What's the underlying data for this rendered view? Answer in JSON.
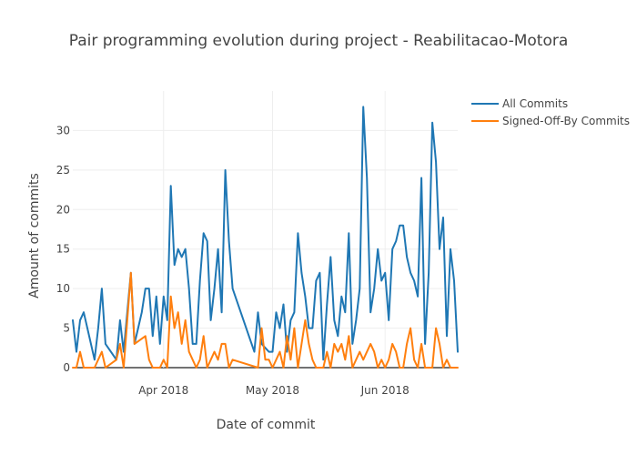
{
  "chart_data": {
    "type": "line",
    "title": "Pair programming evolution during project - Reabilitacao-Motora",
    "xlabel": "Date of commit",
    "ylabel": "Amount of commits",
    "xlim": [
      "2018-03-07",
      "2018-06-21"
    ],
    "ylim": [
      0,
      35
    ],
    "yticks": [
      0,
      5,
      10,
      15,
      20,
      25,
      30
    ],
    "xticks": [
      {
        "date": "2018-04-01",
        "label": "Apr 2018"
      },
      {
        "date": "2018-05-01",
        "label": "May 2018"
      },
      {
        "date": "2018-06-01",
        "label": "Jun 2018"
      }
    ],
    "grid": true,
    "legend": "top-right",
    "series": [
      {
        "name": "All Commits",
        "color": "#1f77b4",
        "points": [
          [
            "2018-03-07",
            6
          ],
          [
            "2018-03-08",
            2
          ],
          [
            "2018-03-09",
            6
          ],
          [
            "2018-03-10",
            7
          ],
          [
            "2018-03-11",
            5
          ],
          [
            "2018-03-13",
            1
          ],
          [
            "2018-03-14",
            5
          ],
          [
            "2018-03-15",
            10
          ],
          [
            "2018-03-16",
            3
          ],
          [
            "2018-03-19",
            1
          ],
          [
            "2018-03-20",
            6
          ],
          [
            "2018-03-21",
            2
          ],
          [
            "2018-03-23",
            12
          ],
          [
            "2018-03-24",
            3
          ],
          [
            "2018-03-25",
            5
          ],
          [
            "2018-03-26",
            7
          ],
          [
            "2018-03-27",
            10
          ],
          [
            "2018-03-28",
            10
          ],
          [
            "2018-03-29",
            4
          ],
          [
            "2018-03-30",
            9
          ],
          [
            "2018-03-31",
            3
          ],
          [
            "2018-04-01",
            9
          ],
          [
            "2018-04-02",
            6
          ],
          [
            "2018-04-03",
            23
          ],
          [
            "2018-04-04",
            13
          ],
          [
            "2018-04-05",
            15
          ],
          [
            "2018-04-06",
            14
          ],
          [
            "2018-04-07",
            15
          ],
          [
            "2018-04-08",
            10
          ],
          [
            "2018-04-09",
            3
          ],
          [
            "2018-04-10",
            3
          ],
          [
            "2018-04-11",
            11
          ],
          [
            "2018-04-12",
            17
          ],
          [
            "2018-04-13",
            16
          ],
          [
            "2018-04-14",
            6
          ],
          [
            "2018-04-15",
            10
          ],
          [
            "2018-04-16",
            15
          ],
          [
            "2018-04-17",
            7
          ],
          [
            "2018-04-18",
            25
          ],
          [
            "2018-04-19",
            16
          ],
          [
            "2018-04-20",
            10
          ],
          [
            "2018-04-26",
            2
          ],
          [
            "2018-04-27",
            7
          ],
          [
            "2018-04-28",
            3
          ],
          [
            "2018-04-30",
            2
          ],
          [
            "2018-05-01",
            2
          ],
          [
            "2018-05-02",
            7
          ],
          [
            "2018-05-03",
            5
          ],
          [
            "2018-05-04",
            8
          ],
          [
            "2018-05-05",
            2
          ],
          [
            "2018-05-06",
            6
          ],
          [
            "2018-05-07",
            7
          ],
          [
            "2018-05-08",
            17
          ],
          [
            "2018-05-09",
            12
          ],
          [
            "2018-05-10",
            9
          ],
          [
            "2018-05-11",
            5
          ],
          [
            "2018-05-12",
            5
          ],
          [
            "2018-05-13",
            11
          ],
          [
            "2018-05-14",
            12
          ],
          [
            "2018-05-15",
            1
          ],
          [
            "2018-05-16",
            8
          ],
          [
            "2018-05-17",
            14
          ],
          [
            "2018-05-18",
            6
          ],
          [
            "2018-05-19",
            4
          ],
          [
            "2018-05-20",
            9
          ],
          [
            "2018-05-21",
            7
          ],
          [
            "2018-05-22",
            17
          ],
          [
            "2018-05-23",
            3
          ],
          [
            "2018-05-24",
            6
          ],
          [
            "2018-05-25",
            10
          ],
          [
            "2018-05-26",
            33
          ],
          [
            "2018-05-27",
            24
          ],
          [
            "2018-05-28",
            7
          ],
          [
            "2018-05-29",
            10
          ],
          [
            "2018-05-30",
            15
          ],
          [
            "2018-05-31",
            11
          ],
          [
            "2018-06-01",
            12
          ],
          [
            "2018-06-02",
            6
          ],
          [
            "2018-06-03",
            15
          ],
          [
            "2018-06-04",
            16
          ],
          [
            "2018-06-05",
            18
          ],
          [
            "2018-06-06",
            18
          ],
          [
            "2018-06-07",
            14
          ],
          [
            "2018-06-08",
            12
          ],
          [
            "2018-06-09",
            11
          ],
          [
            "2018-06-10",
            9
          ],
          [
            "2018-06-11",
            24
          ],
          [
            "2018-06-12",
            3
          ],
          [
            "2018-06-13",
            12
          ],
          [
            "2018-06-14",
            31
          ],
          [
            "2018-06-15",
            26
          ],
          [
            "2018-06-16",
            15
          ],
          [
            "2018-06-17",
            19
          ],
          [
            "2018-06-18",
            4
          ],
          [
            "2018-06-19",
            15
          ],
          [
            "2018-06-20",
            11
          ],
          [
            "2018-06-21",
            2
          ]
        ]
      },
      {
        "name": "Signed-Off-By Commits",
        "color": "#ff7f0e",
        "points": [
          [
            "2018-03-07",
            0
          ],
          [
            "2018-03-08",
            0
          ],
          [
            "2018-03-09",
            2
          ],
          [
            "2018-03-10",
            0
          ],
          [
            "2018-03-13",
            0
          ],
          [
            "2018-03-15",
            2
          ],
          [
            "2018-03-16",
            0
          ],
          [
            "2018-03-19",
            1
          ],
          [
            "2018-03-20",
            3
          ],
          [
            "2018-03-21",
            0
          ],
          [
            "2018-03-23",
            12
          ],
          [
            "2018-03-24",
            3
          ],
          [
            "2018-03-27",
            4
          ],
          [
            "2018-03-28",
            1
          ],
          [
            "2018-03-29",
            0
          ],
          [
            "2018-03-31",
            0
          ],
          [
            "2018-04-01",
            1
          ],
          [
            "2018-04-02",
            0
          ],
          [
            "2018-04-03",
            9
          ],
          [
            "2018-04-04",
            5
          ],
          [
            "2018-04-05",
            7
          ],
          [
            "2018-04-06",
            3
          ],
          [
            "2018-04-07",
            6
          ],
          [
            "2018-04-08",
            2
          ],
          [
            "2018-04-09",
            1
          ],
          [
            "2018-04-10",
            0
          ],
          [
            "2018-04-11",
            1
          ],
          [
            "2018-04-12",
            4
          ],
          [
            "2018-04-13",
            0
          ],
          [
            "2018-04-15",
            2
          ],
          [
            "2018-04-16",
            1
          ],
          [
            "2018-04-17",
            3
          ],
          [
            "2018-04-18",
            3
          ],
          [
            "2018-04-19",
            0
          ],
          [
            "2018-04-20",
            1
          ],
          [
            "2018-04-27",
            0
          ],
          [
            "2018-04-28",
            5
          ],
          [
            "2018-04-29",
            1
          ],
          [
            "2018-04-30",
            1
          ],
          [
            "2018-05-01",
            0
          ],
          [
            "2018-05-02",
            1
          ],
          [
            "2018-05-03",
            2
          ],
          [
            "2018-05-04",
            0
          ],
          [
            "2018-05-05",
            4
          ],
          [
            "2018-05-06",
            1
          ],
          [
            "2018-05-07",
            5
          ],
          [
            "2018-05-08",
            0
          ],
          [
            "2018-05-09",
            3
          ],
          [
            "2018-05-10",
            6
          ],
          [
            "2018-05-11",
            3
          ],
          [
            "2018-05-12",
            1
          ],
          [
            "2018-05-13",
            0
          ],
          [
            "2018-05-14",
            0
          ],
          [
            "2018-05-15",
            0
          ],
          [
            "2018-05-16",
            2
          ],
          [
            "2018-05-17",
            0
          ],
          [
            "2018-05-18",
            3
          ],
          [
            "2018-05-19",
            2
          ],
          [
            "2018-05-20",
            3
          ],
          [
            "2018-05-21",
            1
          ],
          [
            "2018-05-22",
            4
          ],
          [
            "2018-05-23",
            0
          ],
          [
            "2018-05-25",
            2
          ],
          [
            "2018-05-26",
            1
          ],
          [
            "2018-05-28",
            3
          ],
          [
            "2018-05-29",
            2
          ],
          [
            "2018-05-30",
            0
          ],
          [
            "2018-05-31",
            1
          ],
          [
            "2018-06-01",
            0
          ],
          [
            "2018-06-02",
            1
          ],
          [
            "2018-06-03",
            3
          ],
          [
            "2018-06-04",
            2
          ],
          [
            "2018-06-05",
            0
          ],
          [
            "2018-06-06",
            0
          ],
          [
            "2018-06-07",
            3
          ],
          [
            "2018-06-08",
            5
          ],
          [
            "2018-06-09",
            1
          ],
          [
            "2018-06-10",
            0
          ],
          [
            "2018-06-11",
            3
          ],
          [
            "2018-06-12",
            0
          ],
          [
            "2018-06-14",
            0
          ],
          [
            "2018-06-15",
            5
          ],
          [
            "2018-06-16",
            3
          ],
          [
            "2018-06-17",
            0
          ],
          [
            "2018-06-18",
            1
          ],
          [
            "2018-06-19",
            0
          ],
          [
            "2018-06-20",
            0
          ],
          [
            "2018-06-21",
            0
          ]
        ]
      }
    ]
  }
}
